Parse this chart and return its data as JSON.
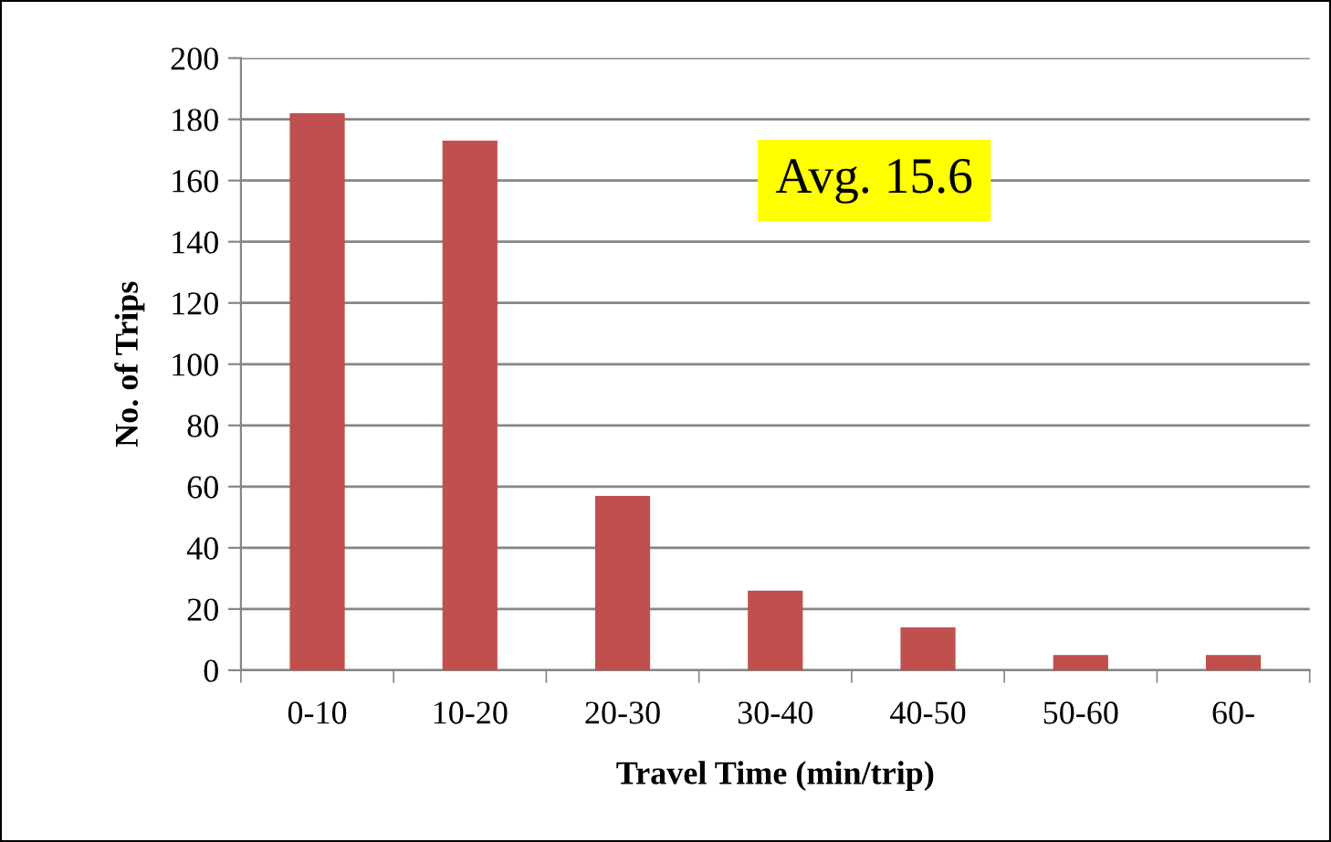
{
  "chart_data": {
    "type": "bar",
    "categories": [
      "0-10",
      "10-20",
      "20-30",
      "30-40",
      "40-50",
      "50-60",
      "60-"
    ],
    "values": [
      182,
      173,
      57,
      26,
      14,
      5,
      5
    ],
    "color": "#c0504d",
    "xlabel": "Travel Time (min/trip)",
    "ylabel": "No. of Trips",
    "ylim": [
      0,
      200
    ],
    "yticks": [
      0,
      20,
      40,
      60,
      80,
      100,
      120,
      140,
      160,
      180,
      200
    ],
    "grid": "y",
    "annotations": [
      "Avg. 15.6"
    ]
  }
}
